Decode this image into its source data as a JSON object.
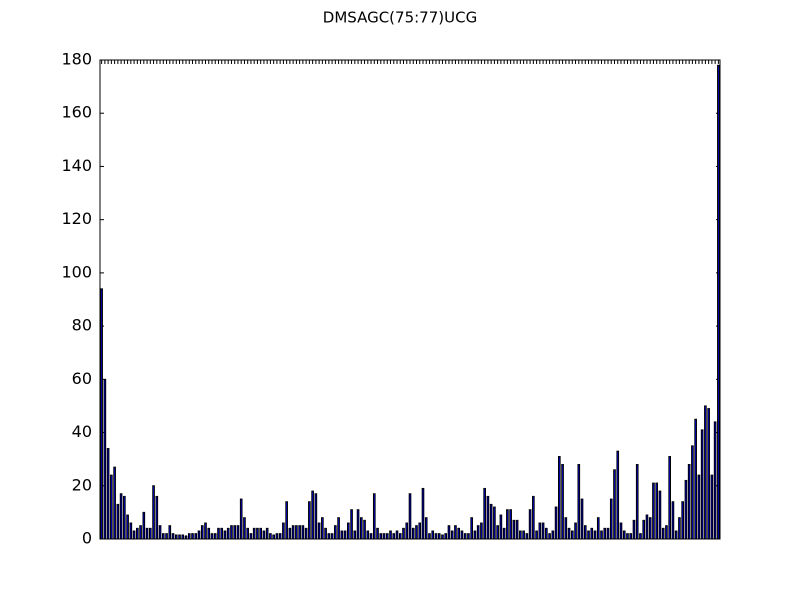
{
  "chart_data": {
    "type": "bar",
    "title": "DMSAGC(75:77)UCG",
    "categories": [
      null,
      null,
      null,
      null,
      null,
      null,
      null,
      null,
      null,
      null,
      null,
      null,
      null,
      null,
      null,
      null,
      null,
      null,
      null,
      null,
      null,
      null,
      null,
      null,
      null,
      null,
      null,
      null,
      null,
      null,
      null,
      null,
      null,
      null,
      null,
      null,
      null,
      null,
      null,
      null,
      null,
      null,
      null,
      null,
      null,
      null,
      null,
      null,
      null,
      null,
      null,
      null,
      null,
      null,
      null,
      null,
      null,
      null,
      null,
      null,
      null,
      null,
      null,
      null,
      null,
      null,
      null,
      null,
      null,
      null,
      null,
      null,
      null,
      null,
      null,
      null,
      null,
      null,
      null,
      null,
      null,
      null,
      null,
      null,
      null,
      null,
      null,
      null,
      null,
      null,
      null,
      null,
      null,
      null,
      null,
      null,
      null,
      null,
      null,
      null,
      null,
      null,
      null,
      null,
      null,
      null,
      null,
      null,
      null,
      null,
      null,
      null,
      null,
      null,
      null,
      null,
      null,
      null,
      null,
      null,
      null,
      null,
      null,
      null,
      null,
      null,
      null,
      null,
      null,
      null,
      null,
      null,
      null,
      null,
      null,
      null,
      null,
      null,
      null,
      null,
      null,
      null,
      null,
      null,
      null,
      null,
      null,
      null,
      null,
      null,
      null,
      null,
      null,
      null,
      null,
      null,
      null,
      null,
      null,
      null,
      null,
      null,
      null,
      null,
      null,
      null,
      null,
      null,
      null,
      null,
      null,
      null,
      null,
      null,
      null,
      null,
      null,
      null,
      null,
      null,
      null,
      null,
      null,
      null,
      null,
      null,
      null,
      null,
      null,
      null,
      null
    ],
    "values": [
      94,
      60,
      34,
      24,
      27,
      13,
      17,
      16,
      9,
      6,
      3,
      4,
      5,
      10,
      4,
      4,
      20,
      16,
      5,
      2,
      2,
      5,
      2,
      1.5,
      1.5,
      1.5,
      1,
      2,
      2,
      2,
      3,
      5,
      6,
      4,
      2,
      2,
      4,
      4,
      3,
      4,
      5,
      5,
      5,
      15,
      8,
      4,
      2,
      4,
      4,
      4,
      3,
      4,
      2,
      1.5,
      2,
      2,
      6,
      14,
      4,
      5,
      5,
      5,
      5,
      4,
      14,
      18,
      17,
      6,
      8,
      4,
      2,
      2,
      5,
      8,
      3,
      3,
      6,
      11,
      3,
      11,
      8,
      7,
      3,
      2,
      17,
      4,
      2,
      2,
      2,
      3,
      2,
      3,
      2,
      4,
      6,
      17,
      4,
      5,
      6,
      19,
      8,
      2,
      3,
      2,
      2,
      1.5,
      2,
      5,
      3,
      5,
      4,
      3,
      2,
      2,
      8,
      3,
      5,
      6,
      19,
      16,
      13,
      12,
      5,
      9,
      4,
      11,
      11,
      7,
      7,
      3,
      3,
      2,
      11,
      16,
      3,
      6,
      6,
      4,
      2,
      3,
      12,
      31,
      28,
      8,
      4,
      3,
      6,
      28,
      15,
      5,
      3,
      4,
      3,
      8,
      3,
      4,
      4,
      15,
      26,
      33,
      6,
      3,
      2,
      2,
      7,
      28,
      2,
      7,
      9,
      8,
      21,
      21,
      18,
      4,
      5,
      31,
      14,
      3,
      8,
      14,
      22,
      28,
      35,
      45,
      24,
      41,
      50,
      49,
      24,
      44,
      178
    ],
    "color": "#0000ff",
    "ylim": [
      0,
      180
    ],
    "yticks": [
      0,
      20,
      40,
      60,
      80,
      100,
      120,
      140,
      160,
      180
    ],
    "grid": false
  }
}
